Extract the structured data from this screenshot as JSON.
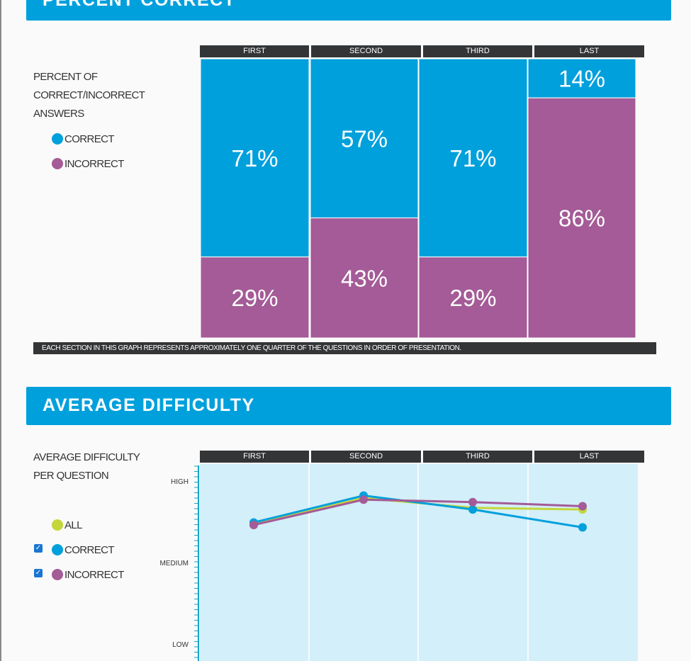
{
  "colors": {
    "banner": "#00a0dc",
    "correct": "#00a0dc",
    "incorrect": "#a45b97",
    "all": "#c4d63a",
    "header_bar": "#333537",
    "plot_bg": "#d3eff9"
  },
  "quarters": [
    "FIRST",
    "SECOND",
    "THIRD",
    "LAST"
  ],
  "percent_section": {
    "banner": "PERCENT CORRECT",
    "side_title": "PERCENT OF CORRECT/INCORRECT ANSWERS",
    "legend": [
      {
        "label": "CORRECT",
        "color": "#00a0dc"
      },
      {
        "label": "INCORRECT",
        "color": "#a45b97"
      }
    ],
    "footnote": "EACH SECTION IN THIS GRAPH REPRESENTS APPROXIMATELY ONE QUARTER OF THE QUESTIONS IN ORDER OF PRESENTATION."
  },
  "difficulty_section": {
    "banner": "AVERAGE DIFFICULTY",
    "side_title": "AVERAGE DIFFICULTY PER QUESTION",
    "legend": [
      {
        "label": "ALL",
        "color": "#c4d63a",
        "checkbox": false
      },
      {
        "label": "CORRECT",
        "color": "#00a0dc",
        "checkbox": true,
        "checked": true
      },
      {
        "label": "INCORRECT",
        "color": "#a45b97",
        "checkbox": true,
        "checked": true
      }
    ]
  },
  "chart_data": [
    {
      "type": "bar",
      "stacked": true,
      "categories": [
        "FIRST",
        "SECOND",
        "THIRD",
        "LAST"
      ],
      "series": [
        {
          "name": "CORRECT",
          "values": [
            71,
            57,
            71,
            14
          ],
          "labels": [
            "71%",
            "57%",
            "71%",
            "14%"
          ]
        },
        {
          "name": "INCORRECT",
          "values": [
            29,
            43,
            29,
            86
          ],
          "labels": [
            "29%",
            "43%",
            "29%",
            "86%"
          ]
        }
      ],
      "ylim": [
        0,
        100
      ]
    },
    {
      "type": "line",
      "categories": [
        "FIRST",
        "SECOND",
        "THIRD",
        "LAST"
      ],
      "y_tick_labels": [
        {
          "label": "HIGH",
          "value": 1.0
        },
        {
          "label": "MEDIUM",
          "value": 0.5
        },
        {
          "label": "LOW",
          "value": 0.0
        }
      ],
      "series": [
        {
          "name": "ALL",
          "values": [
            0.74,
            0.9,
            0.84,
            0.83
          ],
          "markers": [
            false,
            false,
            false,
            true
          ]
        },
        {
          "name": "CORRECT",
          "values": [
            0.75,
            0.915,
            0.83,
            0.72
          ],
          "markers": [
            true,
            true,
            true,
            true
          ]
        },
        {
          "name": "INCORRECT",
          "values": [
            0.735,
            0.89,
            0.875,
            0.85
          ],
          "markers": [
            true,
            true,
            true,
            true
          ]
        }
      ]
    }
  ]
}
